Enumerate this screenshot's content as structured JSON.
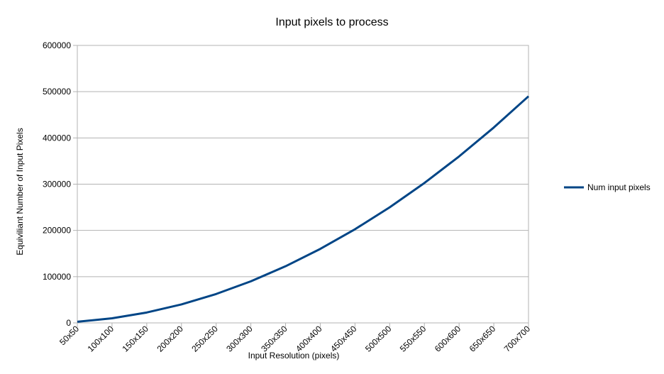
{
  "chart_data": {
    "type": "line",
    "title": "Input pixels to process",
    "xlabel": "Input Resolution (pixels)",
    "ylabel": "Equiviliant Number of Input Pixels",
    "categories": [
      "50x50",
      "100x100",
      "150x150",
      "200x200",
      "250x250",
      "300x300",
      "350x350",
      "400x400",
      "450x450",
      "500x500",
      "550x550",
      "600x600",
      "650x650",
      "700x700"
    ],
    "series": [
      {
        "name": "Num input pixels",
        "color": "#004586",
        "values": [
          2500,
          10000,
          22500,
          40000,
          62500,
          90000,
          122500,
          160000,
          202500,
          250000,
          302500,
          360000,
          422500,
          490000
        ]
      }
    ],
    "ylim": [
      0,
      600000
    ],
    "yticks": [
      0,
      100000,
      200000,
      300000,
      400000,
      500000,
      600000
    ],
    "grid": true,
    "legend": "right"
  }
}
